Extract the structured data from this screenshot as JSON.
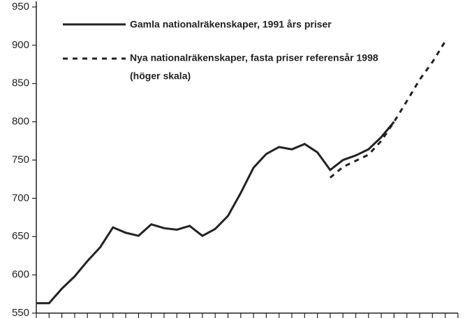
{
  "chart_data": {
    "type": "line",
    "categories": [
      null,
      null,
      null,
      null,
      null,
      null,
      null,
      null,
      null,
      null,
      null,
      null,
      null,
      null,
      null,
      null,
      null,
      null,
      null,
      null,
      null,
      null,
      null,
      null,
      null,
      null,
      null,
      null,
      null,
      null,
      null,
      null,
      null,
      null
    ],
    "series": [
      {
        "name": "Gamla  nationalräkenskaper, 1991 års priser",
        "color": "#222222",
        "dash": false,
        "values": [
          563,
          563,
          582,
          598,
          618,
          636,
          662,
          655,
          651,
          666,
          661,
          659,
          664,
          651,
          660,
          677,
          707,
          740,
          758,
          767,
          764,
          771,
          760,
          737,
          750,
          756,
          764,
          780,
          800,
          null,
          null,
          null,
          null,
          null
        ]
      },
      {
        "name": "Nya nationalräkenskaper, fasta priser referensår 1998",
        "color": "#222222",
        "dash": true,
        "values": [
          null,
          null,
          null,
          null,
          null,
          null,
          null,
          null,
          null,
          null,
          null,
          null,
          null,
          null,
          null,
          null,
          null,
          null,
          null,
          null,
          null,
          null,
          null,
          727,
          741,
          749,
          757,
          775,
          800,
          827,
          855,
          878,
          905,
          null
        ]
      }
    ],
    "legend_note": "(höger skala)",
    "ylim": [
      550,
      950
    ],
    "yticks": [
      550,
      600,
      650,
      700,
      750,
      800,
      850,
      900,
      950
    ]
  }
}
